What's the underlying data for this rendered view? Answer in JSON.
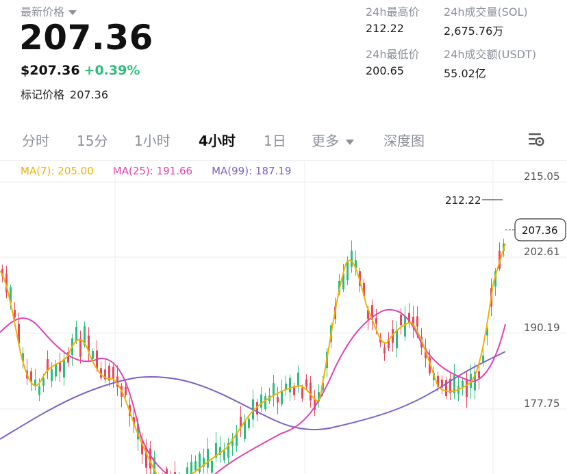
{
  "header": {
    "latest_price_label": "最新价格",
    "price": "207.36",
    "fiat_price": "$207.36",
    "change": "+0.39%",
    "mark_price_label": "标记价格",
    "mark_price": "207.36"
  },
  "stats": {
    "high_label": "24h最高价",
    "high": "212.22",
    "low_label": "24h最低价",
    "low": "200.65",
    "vol_label": "24h成交量(SOL)",
    "vol": "2,675.76万",
    "amount_label": "24h成交额(USDT)",
    "amount": "55.02亿"
  },
  "tabs": [
    {
      "label": "分时"
    },
    {
      "label": "15分"
    },
    {
      "label": "1小时"
    },
    {
      "label": "4小时"
    },
    {
      "label": "1日"
    },
    {
      "label": "更多"
    },
    {
      "label": "深度图"
    }
  ],
  "active_tab": 3,
  "ma": {
    "ma7": "MA(7): 205.00",
    "ma25": "MA(25): 191.66",
    "ma99": "MA(99): 187.19"
  },
  "colors": {
    "up": "#2dbd7b",
    "down": "#e8485c",
    "ma7": "#f2b100",
    "ma25": "#e040b0",
    "ma99": "#7b5fc9",
    "grid": "#eceef1"
  },
  "chart_data": {
    "type": "candlestick",
    "y_axis_labels": [
      "215.05",
      "202.61",
      "190.19",
      "177.75"
    ],
    "high_label": "212.22",
    "current_price_label": "207.36"
  }
}
